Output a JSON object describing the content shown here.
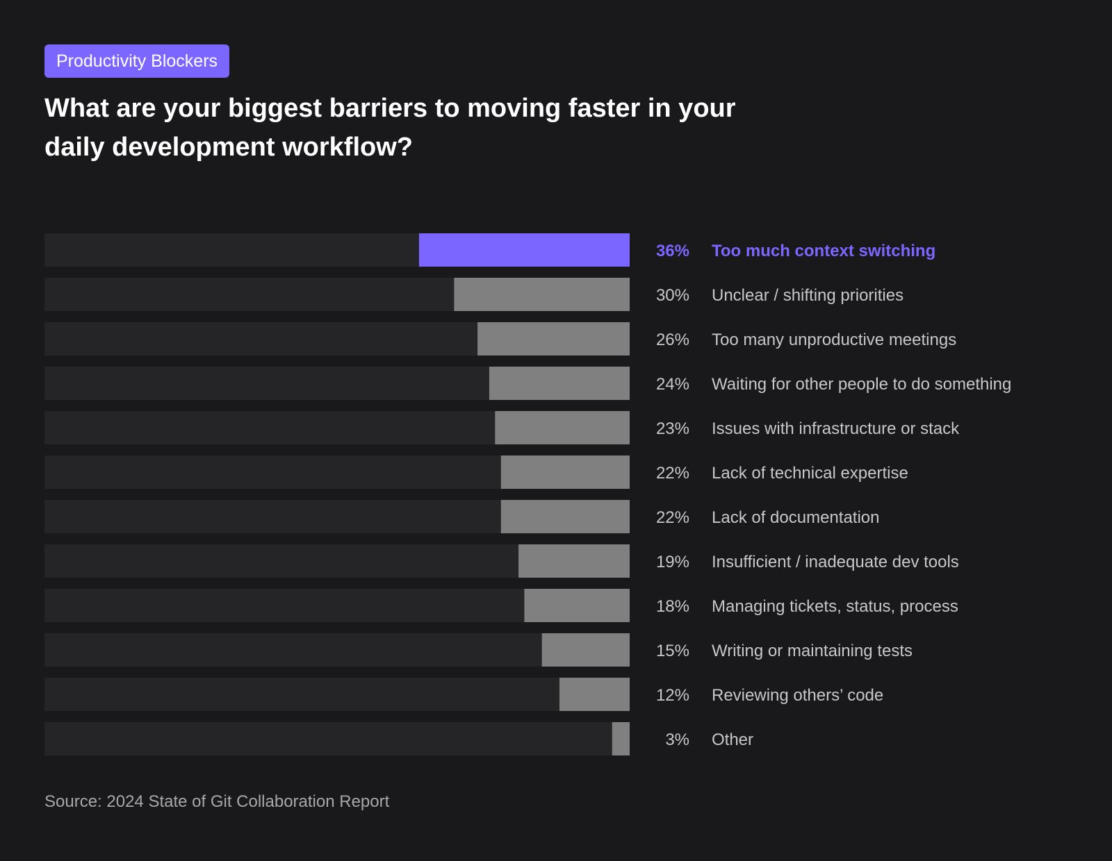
{
  "badge": "Productivity Blockers",
  "title": "What are your biggest barriers to moving faster in your daily development workflow?",
  "source": "Source: 2024 State of Git Collaboration Report",
  "colors": {
    "background": "#19191b",
    "track": "#252527",
    "bar": "#808080",
    "highlight": "#7b66ff",
    "text": "#c8c8c8"
  },
  "chart_data": {
    "type": "bar",
    "orientation": "horizontal",
    "bars_anchor": "right",
    "highlighted_index": 0,
    "categories": [
      "Too much context switching",
      "Unclear / shifting priorities",
      "Too many unproductive meetings",
      "Waiting for other people to do something",
      "Issues with infrastructure or stack",
      "Lack of technical expertise",
      "Lack of documentation",
      "Insufficient / inadequate dev tools",
      "Managing tickets, status, process",
      "Writing or maintaining tests",
      "Reviewing others’ code",
      "Other"
    ],
    "values": [
      36,
      30,
      26,
      24,
      23,
      22,
      22,
      19,
      18,
      15,
      12,
      3
    ],
    "value_labels": [
      "36%",
      "30%",
      "26%",
      "24%",
      "23%",
      "22%",
      "22%",
      "19%",
      "18%",
      "15%",
      "12%",
      "3%"
    ],
    "unit": "%",
    "xlim": [
      0,
      100
    ],
    "grid": false,
    "legend": "none"
  }
}
